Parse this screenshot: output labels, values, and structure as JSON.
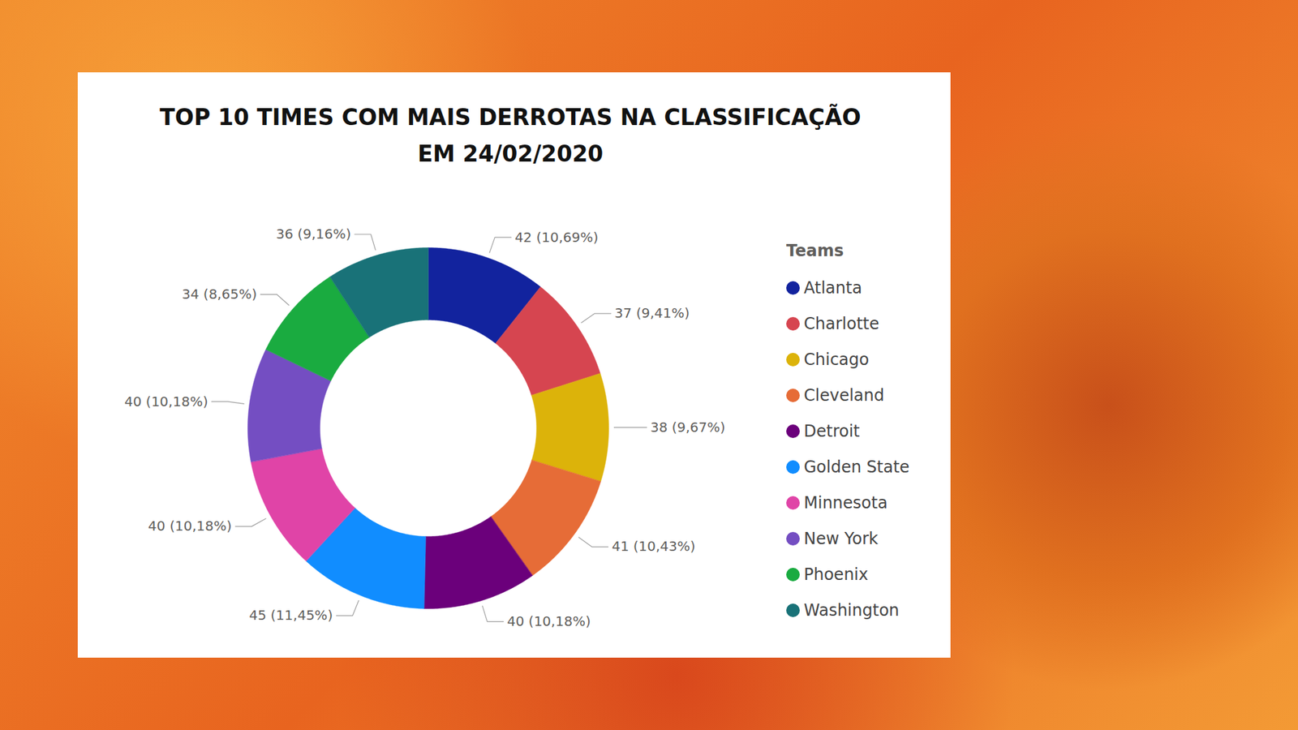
{
  "chart_data": {
    "type": "donut",
    "title": "TOP 10 TIMES COM MAIS DERROTAS NA CLASSIFICAÇÃO EM 24/02/2020",
    "categories": [
      "Atlanta",
      "Charlotte",
      "Chicago",
      "Cleveland",
      "Detroit",
      "Golden State",
      "Minnesota",
      "New York",
      "Phoenix",
      "Washington"
    ],
    "values": [
      42,
      37,
      38,
      41,
      40,
      45,
      40,
      40,
      34,
      36
    ],
    "value_labels": [
      "42 (10,69%)",
      "37 (9,41%)",
      "38 (9,67%)",
      "41 (10,43%)",
      "40 (10,18%)",
      "45 (11,45%)",
      "40 (10,18%)",
      "40 (10,18%)",
      "34 (8,65%)",
      "36 (9,16%)"
    ],
    "colors": [
      "#12239e",
      "#d64550",
      "#dcb30a",
      "#e66c37",
      "#6b007b",
      "#118dff",
      "#e044a7",
      "#744ec2",
      "#1aab40",
      "#197278"
    ],
    "legend": "right",
    "legend_title": "Teams",
    "data_labels": true
  }
}
